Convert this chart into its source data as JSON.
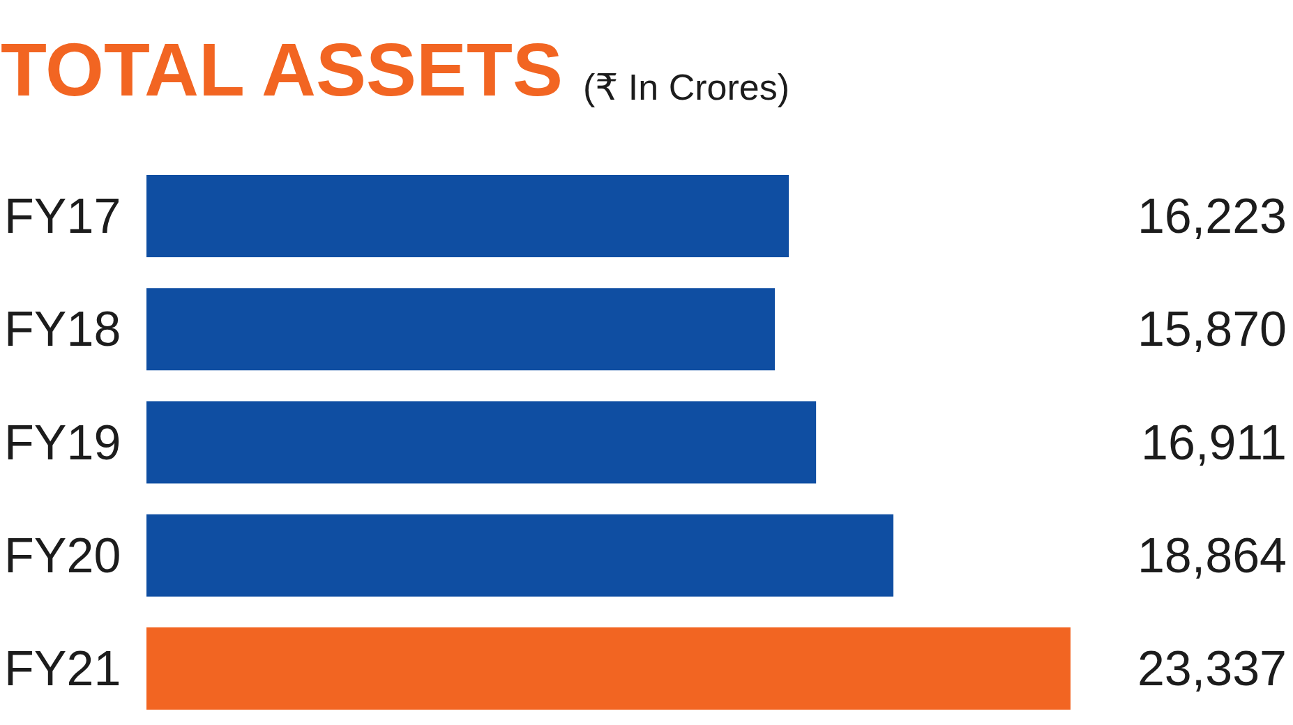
{
  "chart_data": {
    "type": "bar",
    "orientation": "horizontal",
    "title": "TOTAL ASSETS",
    "subtitle": "(₹ In Crores)",
    "categories": [
      "FY17",
      "FY18",
      "FY19",
      "FY20",
      "FY21"
    ],
    "values": [
      16223,
      15870,
      16911,
      18864,
      23337
    ],
    "colors": [
      "#0f4ea2",
      "#0f4ea2",
      "#0f4ea2",
      "#0f4ea2",
      "#f26522"
    ],
    "value_labels": [
      "16,223",
      "15,870",
      "16,911",
      "18,864",
      "23,337"
    ],
    "tick_labels": "y"
  }
}
